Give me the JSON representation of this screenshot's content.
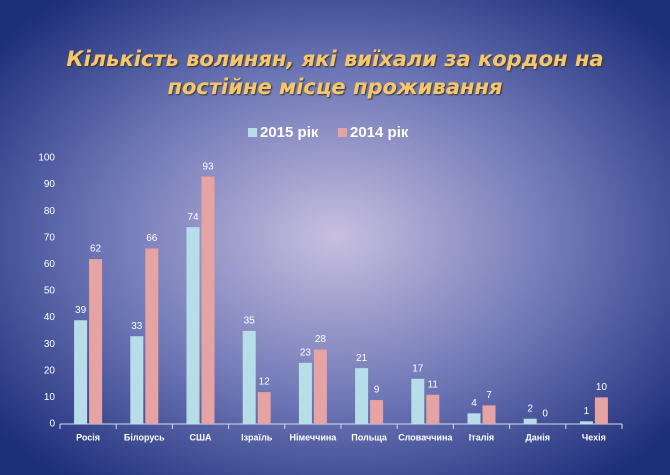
{
  "chart_data": {
    "type": "bar",
    "title": [
      "Кількість волинян, які виїхали за кордон на",
      "постійне місце проживання"
    ],
    "categories": [
      "Росія",
      "Білорусь",
      "США",
      "Ізраїль",
      "Німеччина",
      "Польща",
      "Словаччина",
      "Італія",
      "Данія",
      "Чехія"
    ],
    "series": [
      {
        "name": "2015 рік",
        "color": "#b7dee8",
        "values": [
          39,
          33,
          74,
          35,
          23,
          21,
          17,
          4,
          2,
          1
        ]
      },
      {
        "name": "2014 рік",
        "color": "#e6a3a3",
        "values": [
          62,
          66,
          93,
          12,
          28,
          9,
          11,
          7,
          0,
          10
        ]
      }
    ],
    "ylim": [
      0,
      100
    ],
    "yticks": [
      0,
      10,
      20,
      30,
      40,
      50,
      60,
      70,
      80,
      90,
      100
    ],
    "grid": false,
    "legend": "top"
  }
}
